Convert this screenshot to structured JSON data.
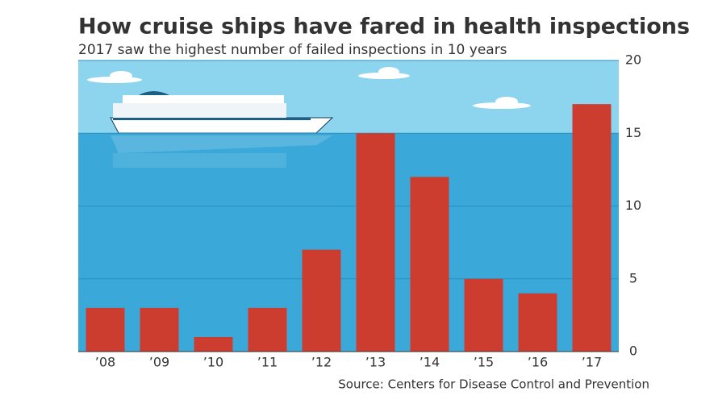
{
  "chart_data": {
    "type": "bar",
    "title": "How cruise ships have fared in health inspections",
    "subtitle": "2017 saw the highest number of failed inspections in 10 years",
    "categories": [
      "’08",
      "’09",
      "’10",
      "’11",
      "’12",
      "’13",
      "’14",
      "’15",
      "’16",
      "’17"
    ],
    "values": [
      3,
      3,
      1,
      3,
      7,
      15,
      12,
      5,
      4,
      17
    ],
    "color": "#cc3d2f",
    "ylim": [
      0,
      20
    ],
    "yticks": [
      0,
      5,
      10,
      15,
      20
    ],
    "grid": true,
    "source": "Source: Centers for Disease Control and Prevention"
  }
}
